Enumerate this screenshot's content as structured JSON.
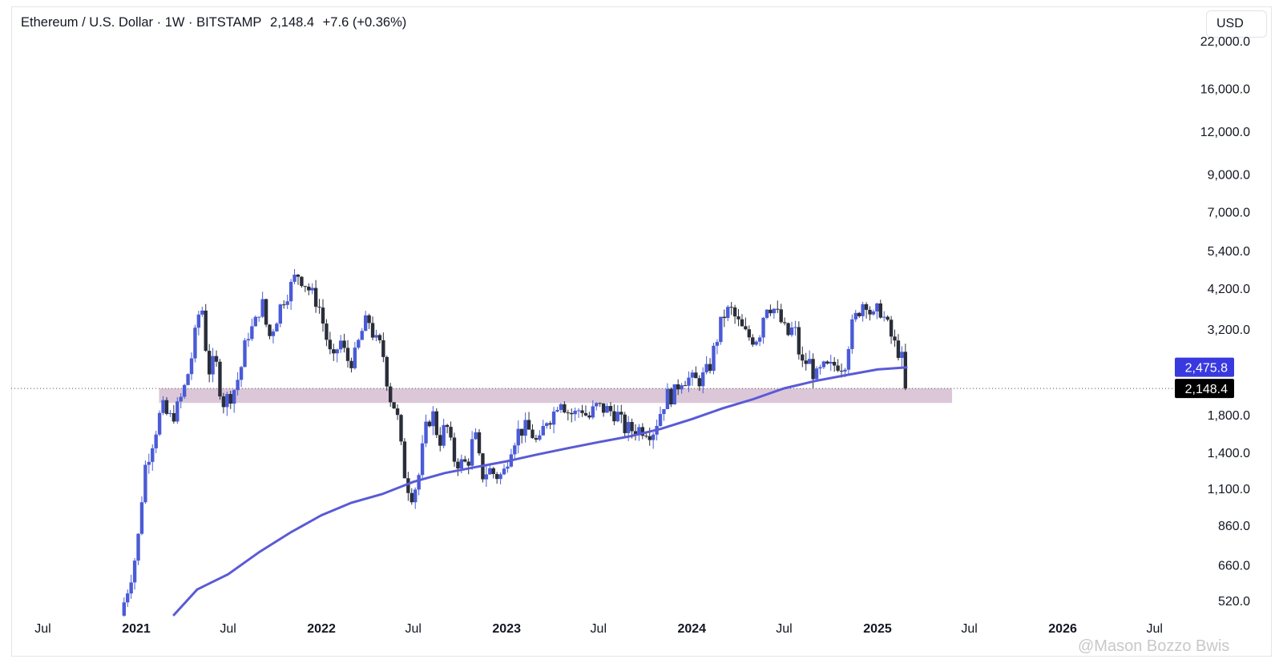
{
  "header": {
    "symbol": "Ethereum / U.S. Dollar · 1W · BITSTAMP",
    "last": "2,148.4",
    "change": "+7.6 (+0.36%)"
  },
  "currency_button": "USD",
  "watermark": "@Mason Bozzo Bwis",
  "colors": {
    "up_candle": "#4a5bd6",
    "down_candle": "#2a2e39",
    "ma_line": "#5a5ad6",
    "zone": "#dcc7d8",
    "ma_badge": "#3939e0",
    "price_badge": "#000000"
  },
  "chart_data": {
    "type": "candlestick",
    "title": "",
    "y_scale": "log",
    "ylim": [
      470,
      24000
    ],
    "y_ticks": [
      "22,000.0",
      "16,000.0",
      "12,000.0",
      "9,000.0",
      "7,000.0",
      "5,400.0",
      "4,200.0",
      "3,200.0",
      "1,800.0",
      "1,400.0",
      "1,100.0",
      "860.0",
      "660.0",
      "520.0"
    ],
    "x_ticks": [
      {
        "label": "Jul",
        "bold": false
      },
      {
        "label": "2021",
        "bold": true
      },
      {
        "label": "Jul",
        "bold": false
      },
      {
        "label": "2022",
        "bold": true
      },
      {
        "label": "Jul",
        "bold": false
      },
      {
        "label": "2023",
        "bold": true
      },
      {
        "label": "Jul",
        "bold": false
      },
      {
        "label": "2024",
        "bold": true
      },
      {
        "label": "Jul",
        "bold": false
      },
      {
        "label": "2025",
        "bold": true
      },
      {
        "label": "Jul",
        "bold": false
      },
      {
        "label": "2026",
        "bold": true
      },
      {
        "label": "Jul",
        "bold": false
      }
    ],
    "price_path": [
      [
        "2020-12-01",
        470
      ],
      [
        "2020-12-20",
        600
      ],
      [
        "2021-01-03",
        740
      ],
      [
        "2021-01-17",
        1250
      ],
      [
        "2021-02-07",
        1600
      ],
      [
        "2021-02-21",
        1900
      ],
      [
        "2021-03-07",
        1750
      ],
      [
        "2021-03-21",
        1850
      ],
      [
        "2021-04-04",
        2100
      ],
      [
        "2021-04-18",
        2550
      ],
      [
        "2021-05-09",
        3900
      ],
      [
        "2021-05-23",
        2400
      ],
      [
        "2021-06-06",
        2600
      ],
      [
        "2021-06-20",
        1950
      ],
      [
        "2021-07-11",
        2100
      ],
      [
        "2021-07-25",
        2400
      ],
      [
        "2021-08-08",
        3100
      ],
      [
        "2021-08-22",
        3250
      ],
      [
        "2021-09-05",
        3900
      ],
      [
        "2021-09-19",
        3000
      ],
      [
        "2021-10-03",
        3400
      ],
      [
        "2021-10-17",
        3900
      ],
      [
        "2021-10-31",
        4200
      ],
      [
        "2021-11-14",
        4650
      ],
      [
        "2021-11-28",
        4400
      ],
      [
        "2021-12-12",
        4050
      ],
      [
        "2021-12-26",
        3800
      ],
      [
        "2022-01-09",
        3100
      ],
      [
        "2022-01-23",
        2500
      ],
      [
        "2022-02-06",
        3000
      ],
      [
        "2022-02-20",
        2600
      ],
      [
        "2022-03-06",
        2600
      ],
      [
        "2022-03-20",
        3100
      ],
      [
        "2022-04-03",
        3450
      ],
      [
        "2022-04-17",
        2950
      ],
      [
        "2022-05-01",
        2800
      ],
      [
        "2022-05-15",
        2050
      ],
      [
        "2022-05-29",
        1850
      ],
      [
        "2022-06-12",
        1250
      ],
      [
        "2022-06-26",
        1050
      ],
      [
        "2022-07-10",
        1150
      ],
      [
        "2022-07-24",
        1600
      ],
      [
        "2022-08-07",
        1850
      ],
      [
        "2022-08-21",
        1500
      ],
      [
        "2022-09-04",
        1700
      ],
      [
        "2022-09-18",
        1350
      ],
      [
        "2022-10-02",
        1300
      ],
      [
        "2022-10-16",
        1300
      ],
      [
        "2022-10-30",
        1600
      ],
      [
        "2022-11-13",
        1200
      ],
      [
        "2022-11-27",
        1250
      ],
      [
        "2022-12-11",
        1200
      ],
      [
        "2022-12-25",
        1200
      ],
      [
        "2023-01-08",
        1450
      ],
      [
        "2023-01-22",
        1600
      ],
      [
        "2023-02-05",
        1650
      ],
      [
        "2023-02-19",
        1600
      ],
      [
        "2023-03-05",
        1450
      ],
      [
        "2023-03-19",
        1750
      ],
      [
        "2023-04-02",
        1800
      ],
      [
        "2023-04-16",
        2050
      ],
      [
        "2023-04-30",
        1850
      ],
      [
        "2023-05-14",
        1800
      ],
      [
        "2023-05-28",
        1900
      ],
      [
        "2023-06-11",
        1750
      ],
      [
        "2023-06-25",
        1900
      ],
      [
        "2023-07-09",
        1880
      ],
      [
        "2023-07-23",
        1850
      ],
      [
        "2023-08-06",
        1820
      ],
      [
        "2023-08-20",
        1650
      ],
      [
        "2023-09-03",
        1630
      ],
      [
        "2023-09-17",
        1640
      ],
      [
        "2023-10-01",
        1650
      ],
      [
        "2023-10-15",
        1600
      ],
      [
        "2023-10-29",
        1800
      ],
      [
        "2023-11-12",
        2050
      ],
      [
        "2023-11-26",
        2050
      ],
      [
        "2023-12-10",
        2300
      ],
      [
        "2023-12-24",
        2300
      ],
      [
        "2024-01-07",
        2250
      ],
      [
        "2024-01-21",
        2300
      ],
      [
        "2024-02-04",
        2450
      ],
      [
        "2024-02-18",
        2950
      ],
      [
        "2024-03-03",
        3500
      ],
      [
        "2024-03-17",
        3650
      ],
      [
        "2024-03-31",
        3350
      ],
      [
        "2024-04-14",
        3100
      ],
      [
        "2024-04-28",
        3000
      ],
      [
        "2024-05-12",
        3050
      ],
      [
        "2024-05-26",
        3800
      ],
      [
        "2024-06-09",
        3700
      ],
      [
        "2024-06-23",
        3400
      ],
      [
        "2024-07-07",
        3050
      ],
      [
        "2024-07-21",
        3250
      ],
      [
        "2024-08-04",
        2500
      ],
      [
        "2024-08-18",
        2600
      ],
      [
        "2024-09-01",
        2300
      ],
      [
        "2024-09-15",
        2450
      ],
      [
        "2024-09-29",
        2450
      ],
      [
        "2024-10-13",
        2550
      ],
      [
        "2024-10-27",
        2500
      ],
      [
        "2024-11-10",
        3200
      ],
      [
        "2024-11-24",
        3600
      ],
      [
        "2024-12-08",
        3950
      ],
      [
        "2024-12-22",
        3400
      ],
      [
        "2025-01-05",
        3700
      ],
      [
        "2025-01-19",
        3300
      ],
      [
        "2025-02-02",
        2900
      ],
      [
        "2025-02-16",
        2700
      ],
      [
        "2025-02-23",
        2400
      ],
      [
        "2025-03-02",
        2148
      ]
    ],
    "ma_path": [
      [
        "2021-03-15",
        470
      ],
      [
        "2021-05-01",
        560
      ],
      [
        "2021-07-01",
        620
      ],
      [
        "2021-09-01",
        720
      ],
      [
        "2021-11-01",
        820
      ],
      [
        "2022-01-01",
        920
      ],
      [
        "2022-03-01",
        1000
      ],
      [
        "2022-05-01",
        1060
      ],
      [
        "2022-07-01",
        1150
      ],
      [
        "2022-09-01",
        1220
      ],
      [
        "2022-11-01",
        1270
      ],
      [
        "2023-01-01",
        1320
      ],
      [
        "2023-03-01",
        1380
      ],
      [
        "2023-05-01",
        1440
      ],
      [
        "2023-07-01",
        1500
      ],
      [
        "2023-09-01",
        1560
      ],
      [
        "2023-11-01",
        1640
      ],
      [
        "2024-01-01",
        1750
      ],
      [
        "2024-03-01",
        1880
      ],
      [
        "2024-05-01",
        2000
      ],
      [
        "2024-07-01",
        2150
      ],
      [
        "2024-09-01",
        2260
      ],
      [
        "2024-11-01",
        2350
      ],
      [
        "2025-01-01",
        2440
      ],
      [
        "2025-03-01",
        2476
      ]
    ],
    "support_zone": {
      "from": "2021-02-15",
      "to": "2025-05-28",
      "low": 1950,
      "high": 2150
    },
    "last_price": 2148.4,
    "last_price_label": "2,148.4",
    "ma_value": 2475.8,
    "ma_label": "2,475.8"
  }
}
